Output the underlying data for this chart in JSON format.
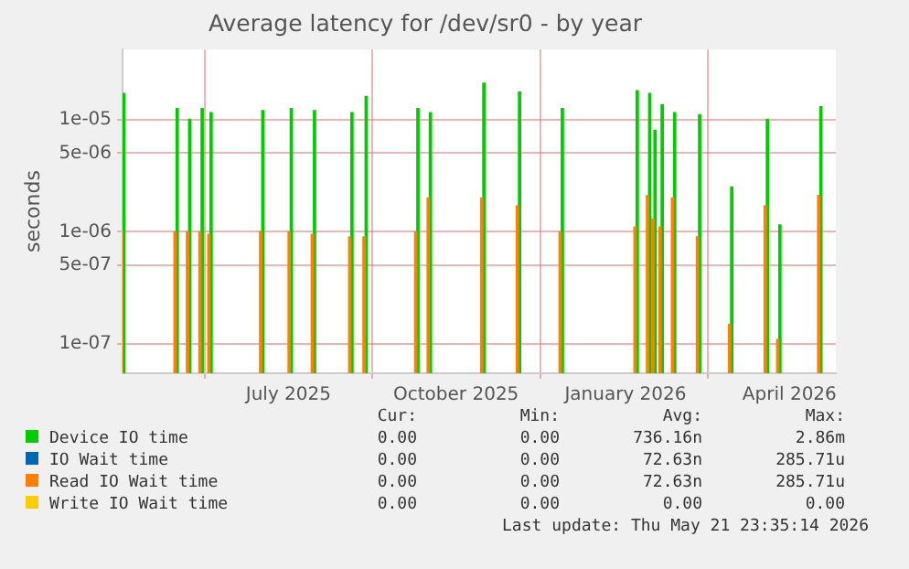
{
  "chart_data": {
    "type": "bar",
    "title": "Average latency for /dev/sr0 - by year",
    "ylabel": "seconds",
    "x": [
      "2025-04-16",
      "2025-05-16",
      "2025-05-23",
      "2025-05-30",
      "2025-06-04",
      "2025-07-03",
      "2025-07-19",
      "2025-08-01",
      "2025-08-22",
      "2025-08-30",
      "2025-09-28",
      "2025-10-05",
      "2025-11-04",
      "2025-11-24",
      "2025-12-18",
      "2026-01-29",
      "2026-02-05",
      "2026-02-08",
      "2026-02-12",
      "2026-02-19",
      "2026-03-05",
      "2026-03-23",
      "2026-04-12",
      "2026-04-19",
      "2026-05-12"
    ],
    "series": [
      {
        "name": "Device IO time",
        "color": "#00cc00",
        "values": [
          1.7e-05,
          1.25e-05,
          1e-05,
          1.25e-05,
          1.15e-05,
          1.2e-05,
          1.25e-05,
          1.2e-05,
          1.15e-05,
          1.6e-05,
          1.25e-05,
          1.15e-05,
          2.1e-05,
          1.75e-05,
          1.25e-05,
          1.8e-05,
          1.7e-05,
          8e-06,
          1.35e-05,
          1.15e-05,
          1.1e-05,
          2.5e-06,
          1e-05,
          1.15e-06,
          1.3e-05
        ]
      },
      {
        "name": "IO Wait time",
        "color": "#0066b3",
        "values": [
          null,
          null,
          null,
          null,
          null,
          null,
          null,
          null,
          null,
          null,
          null,
          null,
          null,
          null,
          null,
          null,
          null,
          null,
          null,
          null,
          null,
          null,
          null,
          null,
          null
        ]
      },
      {
        "name": "Read IO Wait time",
        "color": "#ff8000",
        "values": [
          1e-06,
          1e-06,
          1e-06,
          1e-06,
          9.5e-07,
          1e-06,
          1e-06,
          9.5e-07,
          9e-07,
          9e-07,
          1e-06,
          2e-06,
          2e-06,
          1.7e-06,
          1e-06,
          1.1e-06,
          2.1e-06,
          1.3e-06,
          1.1e-06,
          2e-06,
          9e-07,
          1.5e-07,
          1.7e-06,
          1.1e-07,
          2.1e-06
        ]
      },
      {
        "name": "Write IO Wait time",
        "color": "#ffcc00",
        "values": [
          null,
          null,
          null,
          null,
          null,
          null,
          null,
          null,
          null,
          null,
          null,
          null,
          null,
          null,
          null,
          null,
          null,
          null,
          null,
          null,
          null,
          null,
          null,
          null,
          null
        ]
      }
    ],
    "log": "y",
    "ylim": [
      5.5e-08,
      4.2e-05
    ],
    "yticks": [
      {
        "value": 1e-07,
        "label": "1e-07"
      },
      {
        "value": 5e-07,
        "label": "5e-07"
      },
      {
        "value": 1e-06,
        "label": "1e-06"
      },
      {
        "value": 5e-06,
        "label": "5e-06"
      },
      {
        "value": 1e-05,
        "label": "1e-05"
      }
    ],
    "xlim": [
      "2025-04-16",
      "2026-05-21"
    ],
    "xticks": [
      {
        "value": "2025-07-18",
        "label": "July 2025"
      },
      {
        "value": "2025-10-20",
        "label": "October 2025"
      },
      {
        "value": "2026-01-23",
        "label": "January 2026"
      },
      {
        "value": "2026-04-25",
        "label": "April 2026"
      }
    ],
    "grid": true,
    "legend": "bottom",
    "annotations": [
      "Cur:",
      "Min:",
      "Avg:",
      "Max:",
      "0.00",
      "0.00",
      "736.16n",
      "2.86m",
      "0.00",
      "0.00",
      "72.63n",
      "285.71u",
      "0.00",
      "0.00",
      "72.63n",
      "285.71u",
      "0.00",
      "0.00",
      "0.00",
      "0.00",
      "Last update: Thu May 21 23:35:14 2026"
    ]
  }
}
